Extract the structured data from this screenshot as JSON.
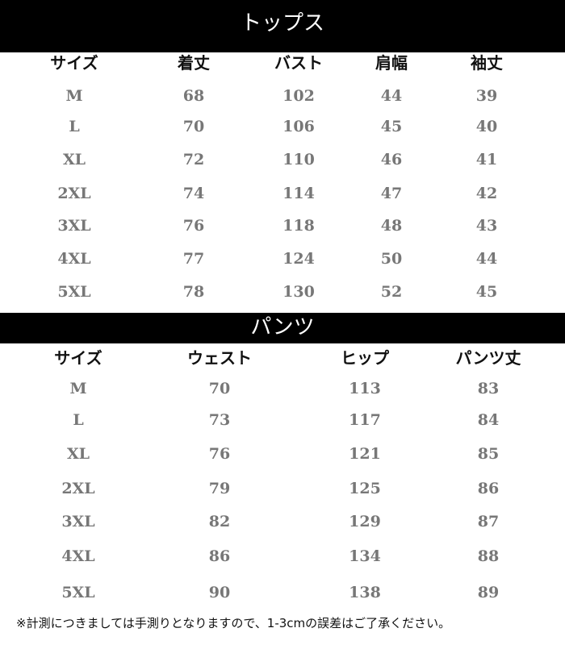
{
  "tops": {
    "title": "トップス",
    "headers": [
      "サイズ",
      "着丈",
      "バスト",
      "肩幅",
      "袖丈"
    ],
    "rows": [
      [
        "M",
        "68",
        "102",
        "44",
        "39"
      ],
      [
        "L",
        "70",
        "106",
        "45",
        "40"
      ],
      [
        "XL",
        "72",
        "110",
        "46",
        "41"
      ],
      [
        "2XL",
        "74",
        "114",
        "47",
        "42"
      ],
      [
        "3XL",
        "76",
        "118",
        "48",
        "43"
      ],
      [
        "4XL",
        "77",
        "124",
        "50",
        "44"
      ],
      [
        "5XL",
        "78",
        "130",
        "52",
        "45"
      ]
    ]
  },
  "pants": {
    "title": "パンツ",
    "headers": [
      "サイズ",
      "ウェスト",
      "ヒップ",
      "パンツ丈"
    ],
    "rows": [
      [
        "M",
        "70",
        "113",
        "83"
      ],
      [
        "L",
        "73",
        "117",
        "84"
      ],
      [
        "XL",
        "76",
        "121",
        "85"
      ],
      [
        "2XL",
        "79",
        "125",
        "86"
      ],
      [
        "3XL",
        "82",
        "129",
        "87"
      ],
      [
        "4XL",
        "86",
        "134",
        "88"
      ],
      [
        "5XL",
        "90",
        "138",
        "89"
      ]
    ]
  },
  "note": "※計測につきましては手測りとなりますので、1-3cmの誤差はご了承ください。"
}
